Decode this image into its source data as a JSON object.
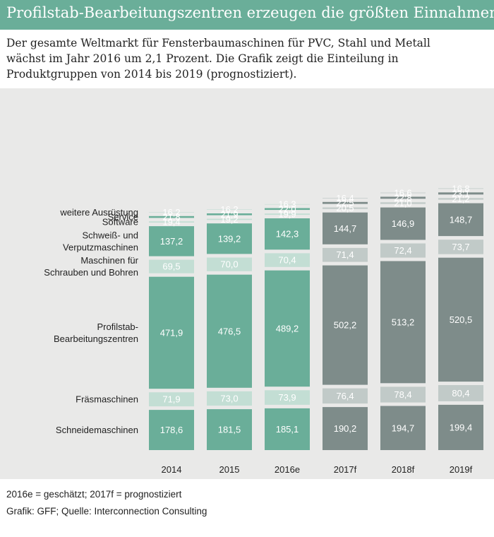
{
  "header": {
    "title": "Profilstab-Bearbeitungszentren erzeugen die größten Einnahmen"
  },
  "intro": {
    "text": "Der gesamte Weltmarkt für Fensterbaumaschinen für PVC, Stahl und Metall wächst im Jahr 2016 um 2,1 Prozent. Die Grafik zeigt die Einteilung in Produktgruppen von 2014 bis 2019 (prognostiziert)."
  },
  "chart_data": {
    "type": "bar",
    "stacked": true,
    "title": "Profilstab-Bearbeitungszentren erzeugen die größten Einnahmen",
    "xlabel": "",
    "ylabel": "",
    "categories": [
      "2014",
      "2015",
      "2016e",
      "2017f",
      "2018f",
      "2019f"
    ],
    "category_status": [
      "actual",
      "actual",
      "estimated",
      "forecast",
      "forecast",
      "forecast"
    ],
    "series": [
      {
        "name": "Schneidemaschinen",
        "label_lines": [
          "Schneidemaschinen"
        ],
        "values": [
          178.6,
          181.5,
          185.1,
          190.2,
          194.7,
          199.4
        ]
      },
      {
        "name": "Fräsmaschinen",
        "label_lines": [
          "Fräsmaschinen"
        ],
        "values": [
          71.9,
          73.0,
          73.9,
          76.4,
          78.4,
          80.4
        ]
      },
      {
        "name": "Profilstab-Bearbeitungszentren",
        "label_lines": [
          "Profilstab-",
          "Bearbeitungszentren"
        ],
        "values": [
          471.9,
          476.5,
          489.2,
          502.2,
          513.2,
          520.5
        ]
      },
      {
        "name": "Maschinen für Schrauben und Bohren",
        "label_lines": [
          "Maschinen für",
          "Schrauben und Bohren"
        ],
        "values": [
          69.5,
          70.0,
          70.4,
          71.4,
          72.4,
          73.7
        ]
      },
      {
        "name": "Schweiß- und Verputzmaschinen",
        "label_lines": [
          "Schweiß- und",
          "Verputzmaschinen"
        ],
        "values": [
          137.2,
          139.2,
          142.3,
          144.7,
          146.9,
          148.7
        ]
      },
      {
        "name": "Software",
        "label_lines": [
          "Software"
        ],
        "values": [
          19.4,
          19.2,
          19.9,
          20.5,
          21.0,
          21.2
        ]
      },
      {
        "name": "Service",
        "label_lines": [
          "Service"
        ],
        "values": [
          21.8,
          21.9,
          22.0,
          22.5,
          22.8,
          23.1
        ]
      },
      {
        "name": "weitere Ausrüstung",
        "label_lines": [
          "weitere Ausrüstung"
        ],
        "values": [
          16.2,
          16.2,
          16.3,
          16.4,
          16.6,
          16.8
        ]
      }
    ],
    "colors": {
      "actual_dark": "#6aae99",
      "actual_light": "#c3ded4",
      "forecast_dark": "#7e8c8a",
      "forecast_light": "#c1cac8",
      "panel_background": "#e9e9e8"
    }
  },
  "footer": {
    "note": "2016e = geschätzt; 2017f = prognostiziert",
    "source": "Grafik: GFF; Quelle: Interconnection Consulting"
  }
}
